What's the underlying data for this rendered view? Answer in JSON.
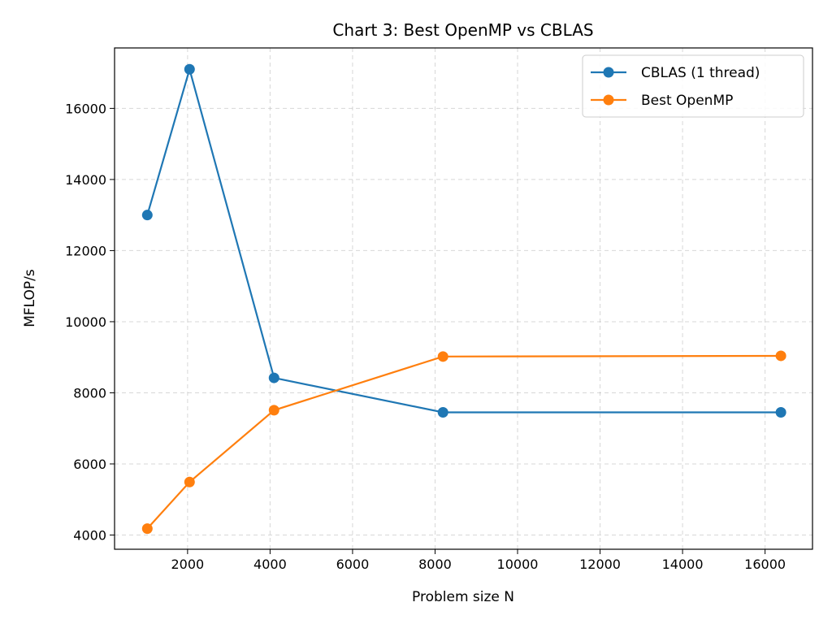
{
  "chart_data": {
    "type": "line",
    "title": "Chart 3: Best OpenMP vs CBLAS",
    "xlabel": "Problem size N",
    "ylabel": "MFLOP/s",
    "xlim": [
      230,
      17150
    ],
    "ylim": [
      3600,
      17700
    ],
    "xticks": [
      2000,
      4000,
      6000,
      8000,
      10000,
      12000,
      14000,
      16000
    ],
    "yticks": [
      4000,
      6000,
      8000,
      10000,
      12000,
      14000,
      16000
    ],
    "grid": true,
    "legend_position": "top-right",
    "series": [
      {
        "name": "CBLAS (1 thread)",
        "color": "#1f77b4",
        "marker": "circle",
        "x": [
          1024,
          2048,
          4096,
          8192,
          16384
        ],
        "y": [
          13000,
          17100,
          8420,
          7450,
          7450
        ]
      },
      {
        "name": "Best OpenMP",
        "color": "#ff7f0e",
        "marker": "circle",
        "x": [
          1024,
          2048,
          4096,
          8192,
          16384
        ],
        "y": [
          4180,
          5490,
          7510,
          9020,
          9040
        ]
      }
    ]
  }
}
